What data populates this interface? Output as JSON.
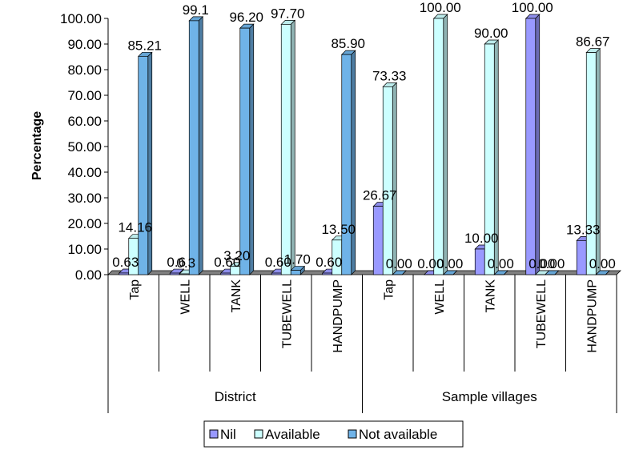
{
  "chart_data": {
    "type": "bar",
    "ylabel": "Percentage",
    "ylim": [
      0,
      100
    ],
    "yticks": [
      "0.00",
      "10.00",
      "20.00",
      "30.00",
      "40.00",
      "50.00",
      "60.00",
      "70.00",
      "80.00",
      "90.00",
      "100.00"
    ],
    "groups": [
      "District",
      "Sample villages"
    ],
    "categories": [
      "Tap",
      "WELL",
      "TANK",
      "TUBEWELL",
      "HANDPUMP",
      "Tap",
      "WELL",
      "TANK",
      "TUBEWELL",
      "HANDPUMP"
    ],
    "series": [
      {
        "name": "Nil",
        "color": "#9999ff",
        "values": [
          0.63,
          0.6,
          0.6,
          0.6,
          0.6,
          26.67,
          0.0,
          10.0,
          100.0,
          13.33
        ],
        "labels": [
          "0.63",
          "0.6",
          "0.60",
          "0.60",
          "0.60",
          "26.67",
          "0.00",
          "10.00",
          "100.00",
          "13.33"
        ]
      },
      {
        "name": "Available",
        "color": "#ccffff",
        "values": [
          14.16,
          0.3,
          3.2,
          97.7,
          13.5,
          73.33,
          100.0,
          90.0,
          0.0,
          86.67
        ],
        "labels": [
          "14.16",
          "0.3",
          "3.20",
          "97.70",
          "13.50",
          "73.33",
          "100.00",
          "90.00",
          "0.00",
          "86.67"
        ]
      },
      {
        "name": "Not available",
        "color": "#6fb3e8",
        "values": [
          85.21,
          99.1,
          96.2,
          1.7,
          85.9,
          0.0,
          0.0,
          0.0,
          0.0,
          0.0
        ],
        "labels": [
          "85.21",
          "99.1",
          "96.20",
          "1.70",
          "85.90",
          "0.00",
          "0.00",
          "0.00",
          "0.00",
          "0.00"
        ]
      }
    ],
    "legend": [
      "Nil",
      "Available",
      "Not available"
    ],
    "legend_position": "bottom",
    "grid": false
  }
}
